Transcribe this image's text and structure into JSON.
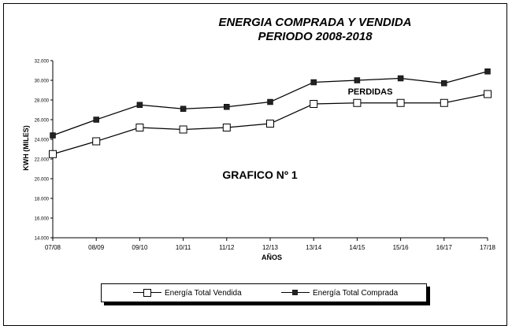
{
  "chart_data": {
    "type": "line",
    "title_lines": [
      "ENERGIA COMPRADA Y VENDIDA",
      "PERIODO 2008-2018"
    ],
    "xlabel": "AÑOS",
    "ylabel": "KWH (MILES)",
    "categories": [
      "07/08",
      "08/09",
      "09/10",
      "10/11",
      "11/12",
      "12/13",
      "13/14",
      "14/15",
      "15/16",
      "16/17",
      "17/18"
    ],
    "ylim": [
      14000,
      32000
    ],
    "yticks": [
      14000,
      16000,
      18000,
      20000,
      22000,
      24000,
      26000,
      28000,
      30000,
      32000
    ],
    "ytick_labels": [
      "14.000",
      "16.000",
      "18.000",
      "20.000",
      "22.000",
      "24.000",
      "26.000",
      "28.000",
      "30.000",
      "32.000"
    ],
    "grid": false,
    "legend_position": "bottom",
    "series": [
      {
        "name": "Energía Total Vendida",
        "marker": "open-square",
        "values": [
          22500,
          23800,
          25200,
          25000,
          25200,
          25600,
          27600,
          27700,
          27700,
          27700,
          28600
        ]
      },
      {
        "name": "Energía Total Comprada",
        "marker": "filled-square",
        "values": [
          24400,
          26000,
          27500,
          27100,
          27300,
          27800,
          29800,
          30000,
          30200,
          29700,
          30900
        ]
      }
    ],
    "annotations": [
      "PERDIDAS",
      "GRAFICO Nº 1"
    ],
    "colors": {
      "line": "#000000",
      "filled_marker": "#222222"
    }
  }
}
